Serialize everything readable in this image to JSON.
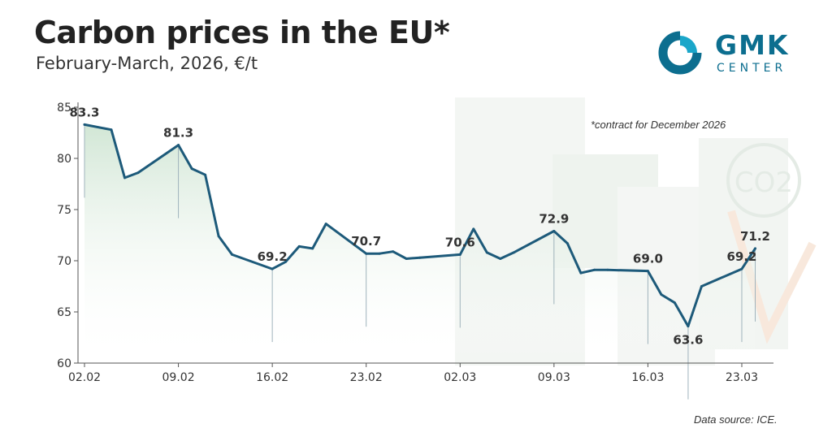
{
  "header": {
    "title": "Carbon prices in the EU*",
    "subtitle": "February-March, 2026, €/t"
  },
  "logo": {
    "name": "GMK",
    "sub": "CENTER",
    "icon": "gmk-logo-icon",
    "color": "#0c6e8f"
  },
  "footnote": "*contract for December 2026",
  "source": "Data source: ICE.",
  "chart_data": {
    "type": "area",
    "title": "Carbon prices in the EU*",
    "subtitle": "February-March, 2026, €/t",
    "xlabel": "",
    "ylabel": "",
    "ylim": [
      60,
      85
    ],
    "yticks": [
      60,
      65,
      70,
      75,
      80,
      85
    ],
    "xlim": [
      "2026-02-02",
      "2026-03-25"
    ],
    "xticks": [
      "02.02",
      "09.02",
      "16.02",
      "23.02",
      "02.03",
      "09.03",
      "16.03",
      "23.03"
    ],
    "line_color": "#1d5a7a",
    "fill_color": "#cfe5d3",
    "grid": false,
    "series": [
      {
        "name": "",
        "x": [
          "2026-02-02",
          "2026-02-04",
          "2026-02-05",
          "2026-02-06",
          "2026-02-09",
          "2026-02-10",
          "2026-02-11",
          "2026-02-12",
          "2026-02-13",
          "2026-02-16",
          "2026-02-17",
          "2026-02-18",
          "2026-02-19",
          "2026-02-20",
          "2026-02-23",
          "2026-02-24",
          "2026-02-25",
          "2026-02-26",
          "2026-02-27",
          "2026-03-02",
          "2026-03-03",
          "2026-03-04",
          "2026-03-05",
          "2026-03-06",
          "2026-03-09",
          "2026-03-10",
          "2026-03-11",
          "2026-03-12",
          "2026-03-13",
          "2026-03-16",
          "2026-03-17",
          "2026-03-18",
          "2026-03-19",
          "2026-03-20",
          "2026-03-23",
          "2026-03-24"
        ],
        "y": [
          83.3,
          82.8,
          78.1,
          78.6,
          81.3,
          79.0,
          78.4,
          72.4,
          70.6,
          69.2,
          69.9,
          71.4,
          71.2,
          73.6,
          70.7,
          70.7,
          70.9,
          70.2,
          70.3,
          70.6,
          73.1,
          70.8,
          70.2,
          70.8,
          72.9,
          71.7,
          68.8,
          69.1,
          69.1,
          69.0,
          66.7,
          65.9,
          63.6,
          67.5,
          69.2,
          71.2
        ]
      }
    ],
    "data_labels": [
      {
        "x": "2026-02-02",
        "text": "83.3"
      },
      {
        "x": "2026-02-09",
        "text": "81.3"
      },
      {
        "x": "2026-02-16",
        "text": "69.2"
      },
      {
        "x": "2026-02-23",
        "text": "70.7"
      },
      {
        "x": "2026-03-02",
        "text": "70.6"
      },
      {
        "x": "2026-03-09",
        "text": "72.9"
      },
      {
        "x": "2026-03-16",
        "text": "69.0"
      },
      {
        "x": "2026-03-19",
        "text": "63.6"
      },
      {
        "x": "2026-03-23",
        "text": "69.2"
      },
      {
        "x": "2026-03-24",
        "text": "71.2"
      }
    ],
    "annotation": "*contract for December 2026"
  }
}
